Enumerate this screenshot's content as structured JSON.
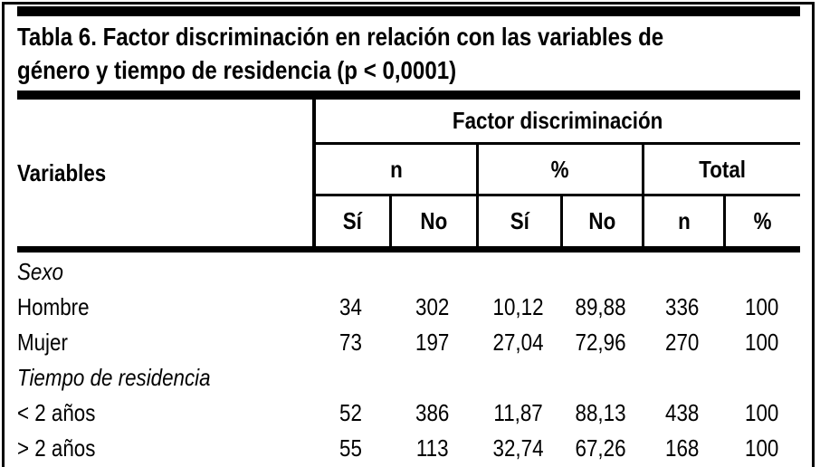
{
  "table": {
    "title_lines": [
      "Tabla 6. Factor discriminación en relación con las variables de",
      "género y tiempo de residencia (p < 0,0001)"
    ],
    "header": {
      "variables": "Variables",
      "group": "Factor discriminación",
      "sub": [
        "n",
        "%",
        "Total"
      ],
      "cols": [
        "Sí",
        "No",
        "Sí",
        "No",
        "n",
        "%"
      ]
    },
    "rows": [
      {
        "label": "Sexo",
        "section": true,
        "values": [
          "",
          "",
          "",
          "",
          "",
          ""
        ]
      },
      {
        "label": "Hombre",
        "section": false,
        "values": [
          "34",
          "302",
          "10,12",
          "89,88",
          "336",
          "100"
        ]
      },
      {
        "label": "Mujer",
        "section": false,
        "values": [
          "73",
          "197",
          "27,04",
          "72,96",
          "270",
          "100"
        ]
      },
      {
        "label": "Tiempo de residencia",
        "section": true,
        "values": [
          "",
          "",
          "",
          "",
          "",
          ""
        ]
      },
      {
        "label": "< 2 años",
        "section": false,
        "values": [
          "52",
          "386",
          "11,87",
          "88,13",
          "438",
          "100"
        ]
      },
      {
        "label": "> 2 años",
        "section": false,
        "values": [
          "55",
          "113",
          "32,74",
          "67,26",
          "168",
          "100"
        ]
      }
    ],
    "colors": {
      "ink": "#000000",
      "paper": "#ffffff"
    }
  }
}
